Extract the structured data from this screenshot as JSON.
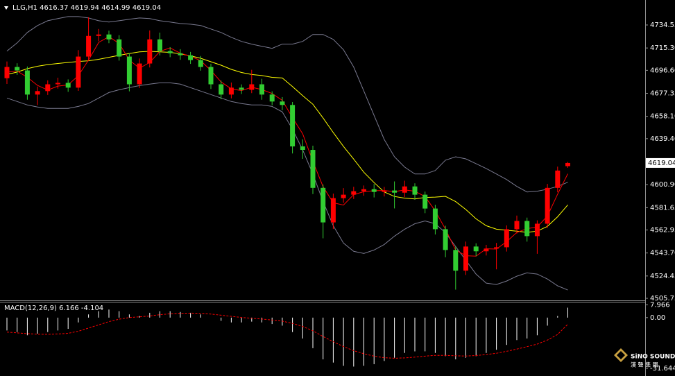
{
  "chart_data": [
    {
      "type": "candlestick",
      "title": "LLG,H1 4616.37 4619.94 4614.99 4619.04",
      "up_color": "#ff0000",
      "down_color": "#32cd32",
      "ylim": [
        4504.6,
        4754.3
      ],
      "yticks": [
        4734.55,
        {
          "value": 4715.3,
          "label": "4715.30"
        },
        {
          "value": 4696.6,
          "label": "4696.60"
        },
        4677.35,
        {
          "value": 4658.1,
          "label": "4658.10"
        },
        {
          "value": 4639.4,
          "label": "4639.40"
        },
        {
          "value": 4600.9,
          "label": "4600.90"
        },
        4581.65,
        4562.95,
        {
          "value": 4543.7,
          "label": "4543.70"
        },
        4524.45,
        4505.75
      ],
      "price_marker": 4619.04,
      "open": [
        4690.0,
        4699.4,
        4696.5,
        4676.3,
        4679.2,
        4684.9,
        4686.1,
        4682.1,
        4708.1,
        4725.4,
        4726.6,
        4722.5,
        4708.1,
        4684.9,
        4702.3,
        4722.5,
        4712.7,
        4710.9,
        4709.2,
        4705.2,
        4699.4,
        4684.9,
        4676.3,
        4682.1,
        4680.3,
        4684.9,
        4676.3,
        4670.5,
        4667.6,
        4632.9,
        4630.0,
        4598.2,
        4569.3,
        4589.6,
        4592.5,
        4595.4,
        4597.1,
        4594.8,
        4596.0,
        4594.2,
        4599.4,
        4592.5,
        4580.9,
        4563.6,
        4546.2,
        4528.9,
        4549.1,
        4545.1,
        4547.4,
        4548.5,
        4563.6,
        4570.5,
        4557.8,
        4568.2,
        4598.2,
        4616.37
      ],
      "high": [
        4704.0,
        4702.5,
        4699.8,
        4683.0,
        4688.2,
        4690.4,
        4689.0,
        4713.5,
        4741.0,
        4731.2,
        4729.8,
        4726.0,
        4711.0,
        4706.5,
        4730.0,
        4728.2,
        4716.0,
        4714.3,
        4712.0,
        4708.6,
        4702.1,
        4688.0,
        4686.4,
        4684.8,
        4697.0,
        4689.5,
        4679.0,
        4674.2,
        4670.1,
        4638.8,
        4633.5,
        4601.0,
        4593.4,
        4598.0,
        4599.1,
        4600.2,
        4601.5,
        4599.0,
        4603.6,
        4604.2,
        4602.0,
        4595.1,
        4584.0,
        4566.5,
        4549.0,
        4553.2,
        4551.8,
        4550.5,
        4552.1,
        4566.8,
        4575.0,
        4573.3,
        4571.0,
        4601.5,
        4616.0,
        4619.94
      ],
      "low": [
        4685.2,
        4692.8,
        4672.0,
        4667.5,
        4676.0,
        4681.3,
        4678.6,
        4679.4,
        4704.5,
        4721.0,
        4719.3,
        4704.7,
        4679.0,
        4681.8,
        4699.0,
        4709.1,
        4707.6,
        4705.4,
        4702.0,
        4696.3,
        4681.0,
        4672.4,
        4673.1,
        4676.8,
        4677.5,
        4672.0,
        4667.4,
        4663.2,
        4627.0,
        4622.5,
        4593.0,
        4556.0,
        4563.8,
        4585.7,
        4588.9,
        4591.6,
        4590.2,
        4591.0,
        4581.0,
        4590.5,
        4588.3,
        4577.0,
        4559.2,
        4540.1,
        4513.0,
        4525.3,
        4541.0,
        4541.6,
        4530.0,
        4544.9,
        4560.0,
        4553.2,
        4543.0,
        4564.8,
        4594.5,
        4614.99
      ],
      "close": [
        4699.4,
        4696.5,
        4676.3,
        4679.2,
        4684.9,
        4686.1,
        4682.1,
        4708.1,
        4725.4,
        4726.6,
        4722.5,
        4708.1,
        4684.9,
        4702.3,
        4722.5,
        4712.7,
        4710.9,
        4709.2,
        4705.2,
        4699.4,
        4684.9,
        4676.3,
        4682.1,
        4680.3,
        4684.9,
        4676.3,
        4670.5,
        4667.6,
        4632.9,
        4630.0,
        4598.2,
        4569.3,
        4589.6,
        4592.5,
        4595.4,
        4597.1,
        4594.8,
        4596.0,
        4594.2,
        4599.4,
        4592.5,
        4580.9,
        4563.6,
        4546.2,
        4528.9,
        4549.1,
        4545.1,
        4547.4,
        4548.5,
        4563.6,
        4570.5,
        4557.8,
        4568.2,
        4598.2,
        4612.7,
        4619.04
      ],
      "overlays": [
        {
          "color": "#7a7a90",
          "values": [
            4712.7,
            4719.6,
            4728.3,
            4734.1,
            4738.1,
            4739.9,
            4741.6,
            4741.6,
            4740.4,
            4738.1,
            4737.0,
            4738.1,
            4739.3,
            4740.4,
            4739.9,
            4738.1,
            4737.0,
            4735.8,
            4735.2,
            4734.1,
            4731.2,
            4728.3,
            4724.2,
            4720.8,
            4718.5,
            4716.7,
            4715.0,
            4718.5,
            4718.5,
            4720.8,
            4726.6,
            4726.6,
            4722.5,
            4713.8,
            4699.4,
            4679.2,
            4658.9,
            4638.7,
            4624.2,
            4615.6,
            4609.8,
            4609.8,
            4612.7,
            4621.4,
            4624.2,
            4622.5,
            4618.5,
            4614.4,
            4609.8,
            4605.2,
            4599.4,
            4594.8,
            4595.4,
            4597.1,
            4599.4,
            4602.9
          ]
        },
        {
          "color": "#7a7a90",
          "values": [
            4673.4,
            4670.5,
            4667.6,
            4665.9,
            4664.7,
            4664.7,
            4664.7,
            4666.4,
            4668.8,
            4673.4,
            4678.0,
            4680.3,
            4682.1,
            4683.8,
            4685.0,
            4686.1,
            4686.1,
            4685.0,
            4682.1,
            4679.2,
            4676.3,
            4673.4,
            4670.5,
            4668.8,
            4667.6,
            4667.6,
            4666.4,
            4661.8,
            4647.4,
            4630.0,
            4609.8,
            4586.7,
            4566.5,
            4552.0,
            4545.1,
            4543.3,
            4546.2,
            4550.8,
            4557.8,
            4563.6,
            4568.2,
            4570.5,
            4568.2,
            4560.7,
            4549.1,
            4537.6,
            4526.0,
            4518.5,
            4517.3,
            4520.2,
            4524.3,
            4527.1,
            4526.0,
            4521.9,
            4516.2,
            4512.7
          ]
        },
        {
          "color": "#ffff00",
          "values": [
            4693.1,
            4695.1,
            4698.0,
            4700.0,
            4701.4,
            4702.3,
            4703.2,
            4704.0,
            4704.6,
            4705.8,
            4707.5,
            4709.2,
            4710.7,
            4712.1,
            4712.5,
            4712.1,
            4711.6,
            4710.4,
            4708.7,
            4706.7,
            4703.8,
            4700.9,
            4697.4,
            4694.8,
            4693.1,
            4692.2,
            4690.7,
            4690.2,
            4683.0,
            4675.4,
            4668.2,
            4656.7,
            4644.5,
            4632.9,
            4622.3,
            4611.3,
            4602.6,
            4594.8,
            4591.0,
            4589.6,
            4589.0,
            4590.2,
            4590.5,
            4591.1,
            4586.7,
            4580.1,
            4572.3,
            4566.5,
            4563.6,
            4562.7,
            4561.9,
            4561.0,
            4562.0,
            4566.0,
            4574.0,
            4584.0
          ]
        },
        {
          "color": "#ff0000",
          "values": [
            4695.0,
            4696.0,
            4690.7,
            4684.0,
            4680.1,
            4683.4,
            4684.4,
            4692.1,
            4705.2,
            4720.0,
            4724.8,
            4719.1,
            4705.2,
            4698.4,
            4703.2,
            4712.5,
            4715.4,
            4710.9,
            4708.4,
            4704.6,
            4696.5,
            4686.9,
            4681.1,
            4679.6,
            4682.4,
            4680.5,
            4677.2,
            4671.5,
            4657.0,
            4643.5,
            4620.4,
            4599.2,
            4585.7,
            4583.8,
            4592.5,
            4595.0,
            4595.8,
            4596.0,
            4595.0,
            4596.5,
            4595.4,
            4590.9,
            4579.0,
            4563.6,
            4546.2,
            4541.4,
            4541.0,
            4547.2,
            4547.0,
            4553.2,
            4560.9,
            4564.0,
            4565.5,
            4574.7,
            4593.0,
            4610.0
          ]
        }
      ]
    },
    {
      "type": "macd",
      "title": "MACD(12,26,9) 6.166 -4.104",
      "ylim": [
        -34.2,
        9.0
      ],
      "yticks": [
        7.966,
        {
          "value": 0,
          "label": "0.00"
        },
        -31.644
      ],
      "histogram_color": "#ffffff",
      "signal_color": "#ff0000",
      "signal_dashed": true,
      "histogram": [
        -8,
        -9,
        -11,
        -10,
        -9,
        -8,
        -7,
        -3,
        2,
        4,
        5,
        4,
        2,
        1,
        3,
        4,
        4,
        3.5,
        3,
        2,
        0,
        -2,
        -3,
        -3,
        -2.5,
        -3,
        -4,
        -5,
        -9,
        -13,
        -19,
        -26,
        -28,
        -30,
        -30.5,
        -30,
        -29,
        -27,
        -25,
        -22,
        -21,
        -21,
        -22,
        -24,
        -26,
        -25,
        -24,
        -22,
        -20,
        -17,
        -14,
        -13,
        -11,
        -5,
        1,
        6.166
      ],
      "signal": [
        -9,
        -9.5,
        -10,
        -10.3,
        -10.4,
        -10.2,
        -9.8,
        -8.5,
        -6.5,
        -4.5,
        -2.5,
        -1,
        0,
        0.5,
        1,
        1.8,
        2.4,
        2.7,
        2.8,
        2.7,
        2.2,
        1.5,
        0.8,
        0.1,
        -0.4,
        -0.9,
        -1.5,
        -2.2,
        -3.6,
        -5.5,
        -8.2,
        -11.8,
        -15,
        -18,
        -20.6,
        -22.5,
        -24,
        -25,
        -25.3,
        -25.1,
        -24.6,
        -24,
        -23.5,
        -23.5,
        -23.8,
        -23.9,
        -23.6,
        -23,
        -22.2,
        -21,
        -19.6,
        -18.1,
        -16.5,
        -14,
        -10.5,
        -4.104
      ]
    }
  ],
  "logo": {
    "name": "SiNO SOUND",
    "sub": "漢 聲 集 團"
  }
}
